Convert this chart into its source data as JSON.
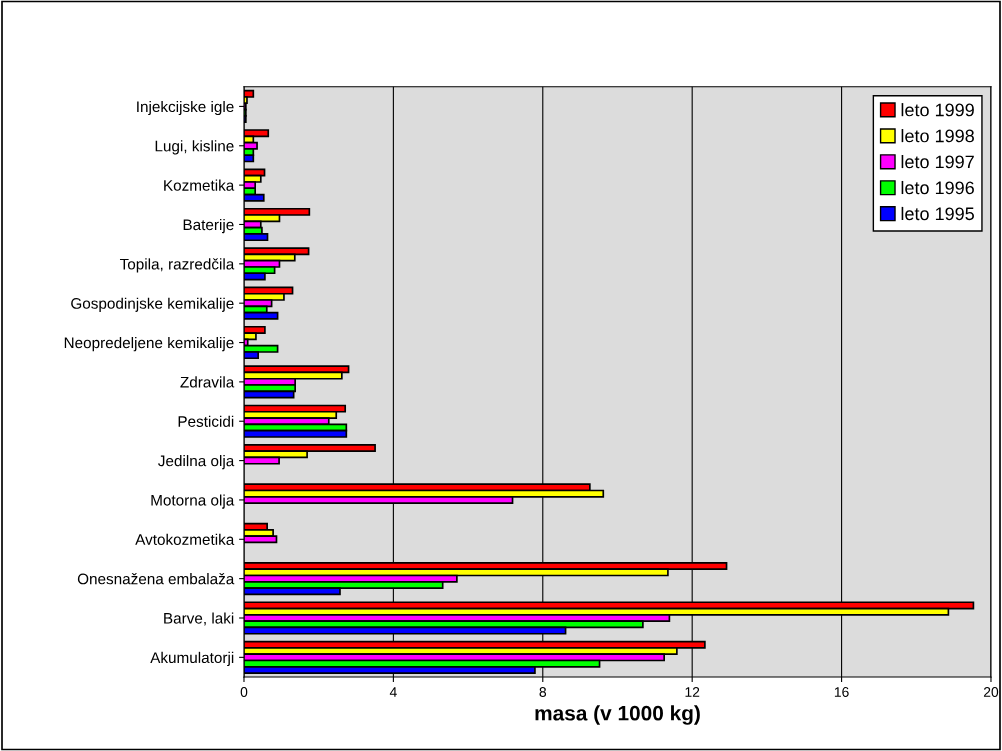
{
  "chart_data": {
    "type": "bar",
    "orientation": "horizontal",
    "xlabel": "masa (v 1000 kg)",
    "categories": [
      "Injekcijske igle",
      "Lugi, kisline",
      "Kozmetika",
      "Baterije",
      "Topila, razredčila",
      "Gospodinjske kemikalije",
      "Neopredeljene kemikalije",
      "Zdravila",
      "Pesticidi",
      "Jedilna olja",
      "Motorna olja",
      "Avtokozmetika",
      "Onesnažena embalaža",
      "Barve, laki",
      "Akumulatorji"
    ],
    "series": [
      {
        "name": "leto 1999",
        "color": "#ff0000",
        "values": [
          0.25,
          0.65,
          0.55,
          1.75,
          1.73,
          1.3,
          0.56,
          2.8,
          2.71,
          3.51,
          9.26,
          0.62,
          12.92,
          19.53,
          12.34
        ]
      },
      {
        "name": "leto 1998",
        "color": "#ffff00",
        "values": [
          0.08,
          0.25,
          0.45,
          0.95,
          1.36,
          1.07,
          0.32,
          2.62,
          2.47,
          1.69,
          9.62,
          0.78,
          11.35,
          18.86,
          11.59
        ]
      },
      {
        "name": "leto 1997",
        "color": "#ff00ff",
        "values": [
          0.05,
          0.35,
          0.3,
          0.45,
          0.95,
          0.74,
          0.1,
          1.37,
          2.27,
          0.94,
          7.19,
          0.87,
          5.7,
          11.39,
          11.25
        ]
      },
      {
        "name": "leto 1996",
        "color": "#00ff00",
        "values": [
          0.05,
          0.25,
          0.3,
          0.48,
          0.82,
          0.61,
          0.9,
          1.37,
          2.74,
          null,
          null,
          null,
          5.32,
          10.68,
          9.52
        ]
      },
      {
        "name": "leto 1995",
        "color": "#0000ff",
        "values": [
          0.05,
          0.25,
          0.53,
          0.63,
          0.56,
          0.9,
          0.38,
          1.33,
          2.74,
          null,
          null,
          null,
          2.57,
          8.61,
          7.79
        ]
      }
    ],
    "xlim": [
      0,
      20
    ],
    "xticks": [
      0,
      4,
      8,
      12,
      16,
      20
    ],
    "grid": "x",
    "legend": "top right"
  }
}
